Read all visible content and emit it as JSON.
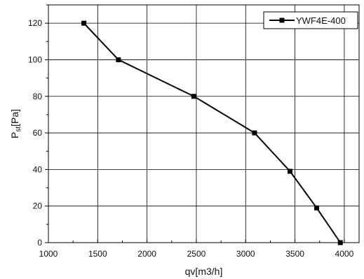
{
  "chart_data": {
    "type": "line",
    "title": "",
    "xlabel": "qv[m3/h]",
    "ylabel_main": "P",
    "ylabel_sub": "st",
    "ylabel_tail": "[Pa]",
    "xlim": [
      1000,
      4150
    ],
    "ylim": [
      0,
      130
    ],
    "xticks": [
      1000,
      1500,
      2000,
      2500,
      3000,
      3500,
      4000
    ],
    "yticks": [
      0,
      20,
      40,
      60,
      80,
      100,
      120
    ],
    "grid": true,
    "legend_position": "top-right",
    "series": [
      {
        "name": "YWF4E-400",
        "marker": "square",
        "color": "#000000",
        "x": [
          1360,
          1710,
          2475,
          3090,
          3450,
          3720,
          3960
        ],
        "y": [
          120,
          100,
          80,
          60,
          39,
          19,
          0
        ]
      }
    ]
  }
}
